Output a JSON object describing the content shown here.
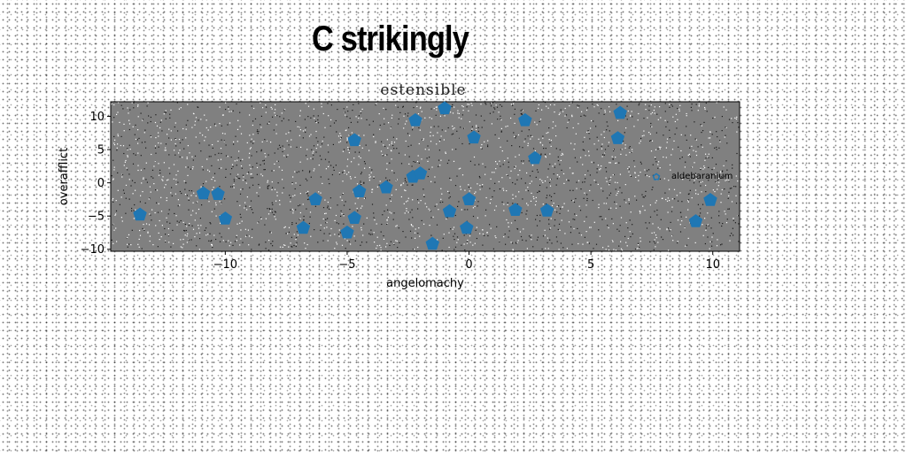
{
  "header": {
    "main_title": "C strikingly"
  },
  "chart_data": {
    "type": "scatter",
    "title": "estensible",
    "xlabel": "angelomachy",
    "ylabel": "overafflict",
    "xlim": [
      -14.7,
      11.1
    ],
    "ylim": [
      -10.3,
      12.2
    ],
    "xticks": [
      -10,
      -5,
      0,
      5,
      10
    ],
    "yticks": [
      -10,
      -5,
      0,
      5,
      10
    ],
    "xtick_labels": [
      "−10",
      "−5",
      "0",
      "5",
      "10"
    ],
    "ytick_labels": [
      "−10",
      "−5",
      "0",
      "5",
      "10"
    ],
    "grid": false,
    "legend_position": "right",
    "marker": "pentagon",
    "plot_background": "#808080",
    "series": [
      {
        "name": "aldebaranium",
        "color": "#1f77b4",
        "x": [
          -13.5,
          -10.9,
          -10.3,
          -10.0,
          -6.8,
          -6.3,
          -5.0,
          -4.7,
          -4.7,
          -4.5,
          -3.4,
          -2.3,
          -2.2,
          -2.0,
          -1.5,
          -1.0,
          -0.8,
          -0.1,
          0.0,
          0.2,
          1.9,
          2.3,
          2.7,
          3.2,
          6.1,
          6.2,
          9.3,
          9.9
        ],
        "y": [
          -4.8,
          -1.6,
          -1.7,
          -5.4,
          -6.8,
          -2.5,
          -7.5,
          -5.3,
          6.4,
          -1.3,
          -0.7,
          0.9,
          9.4,
          1.4,
          -9.2,
          11.2,
          -4.3,
          -6.8,
          -2.5,
          6.8,
          -4.1,
          9.4,
          3.7,
          -4.2,
          6.7,
          10.5,
          -5.8,
          -2.6
        ]
      }
    ]
  }
}
